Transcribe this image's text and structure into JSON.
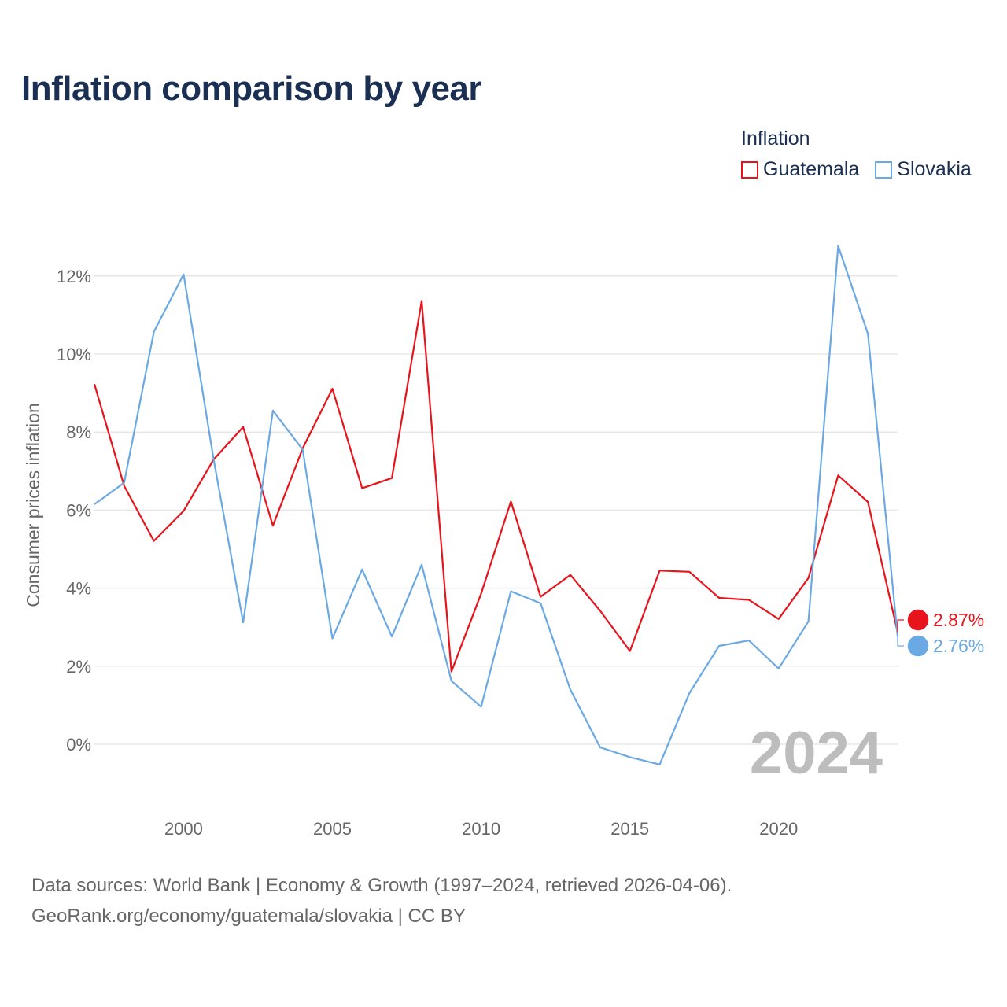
{
  "title": "Inflation comparison by year",
  "legend": {
    "title": "Inflation",
    "items": [
      {
        "name": "Guatemala",
        "color": "#e8141c"
      },
      {
        "name": "Slovakia",
        "color": "#6aa9e3"
      }
    ]
  },
  "chart_data": {
    "type": "line",
    "title": "Inflation comparison by year",
    "xlabel": "",
    "ylabel": "Consumer prices inflation",
    "x": [
      1997,
      1998,
      1999,
      2000,
      2001,
      2002,
      2003,
      2004,
      2005,
      2006,
      2007,
      2008,
      2009,
      2010,
      2011,
      2012,
      2013,
      2014,
      2015,
      2016,
      2017,
      2018,
      2019,
      2020,
      2021,
      2022,
      2023,
      2024
    ],
    "xlim": [
      1997,
      2024
    ],
    "ylim": [
      -1.5,
      13.5
    ],
    "x_ticks": [
      2000,
      2005,
      2010,
      2015,
      2020
    ],
    "x_tick_labels": [
      "2000",
      "2005",
      "2010",
      "2015",
      "2020"
    ],
    "y_ticks": [
      0,
      2,
      4,
      6,
      8,
      10,
      12
    ],
    "y_tick_labels": [
      "0%",
      "2%",
      "4%",
      "6%",
      "8%",
      "10%",
      "12%"
    ],
    "grid": true,
    "legend_position": "top-right",
    "series": [
      {
        "name": "Guatemala",
        "color": "#e8141c",
        "values": [
          9.23,
          6.62,
          5.21,
          5.98,
          7.29,
          8.13,
          5.6,
          7.58,
          9.11,
          6.56,
          6.82,
          11.36,
          1.86,
          3.86,
          6.22,
          3.78,
          4.34,
          3.42,
          2.39,
          4.45,
          4.42,
          3.75,
          3.7,
          3.21,
          4.26,
          6.89,
          6.21,
          2.87
        ],
        "end_label": "2.87%"
      },
      {
        "name": "Slovakia",
        "color": "#6aa9e3",
        "values": [
          6.15,
          6.7,
          10.57,
          12.04,
          7.33,
          3.12,
          8.55,
          7.55,
          2.71,
          4.48,
          2.76,
          4.6,
          1.62,
          0.96,
          3.92,
          3.61,
          1.4,
          -0.08,
          -0.33,
          -0.52,
          1.31,
          2.52,
          2.66,
          1.94,
          3.15,
          12.77,
          10.52,
          2.76
        ],
        "end_label": "2.76%"
      }
    ],
    "annotation": "2024"
  },
  "source": {
    "line1": "Data sources: World Bank | Economy & Growth (1997–2024, retrieved 2026-04-06).",
    "line2": "GeoRank.org/economy/guatemala/slovakia | CC BY"
  }
}
